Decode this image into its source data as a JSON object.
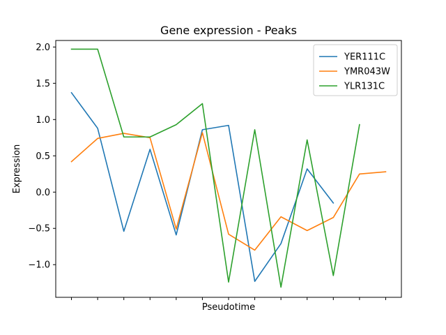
{
  "chart_data": {
    "type": "line",
    "title": "Gene expression - Peaks",
    "xlabel": "Pseudotime",
    "ylabel": "Expression",
    "x": [
      0,
      1,
      2,
      3,
      4,
      5,
      6,
      7,
      8,
      9,
      10,
      11,
      12
    ],
    "xlim": [
      -0.6,
      12.6
    ],
    "ylim": [
      -1.45,
      2.09
    ],
    "yticks": [
      -1.0,
      -0.5,
      0.0,
      0.5,
      1.0,
      1.5,
      2.0
    ],
    "ytick_labels": [
      "−1.0",
      "−0.5",
      "0.0",
      "0.5",
      "1.0",
      "1.5",
      "2.0"
    ],
    "xtick_labels": [
      "",
      "",
      "",
      "",
      "",
      "",
      "",
      "",
      "",
      "",
      "",
      "",
      ""
    ],
    "grid": false,
    "legend_position": "upper-right",
    "series": [
      {
        "name": "YER111C",
        "color": "#1f77b4",
        "values": [
          1.37,
          0.88,
          -0.54,
          0.59,
          -0.59,
          0.86,
          0.92,
          -1.23,
          -0.71,
          0.32,
          -0.15,
          null,
          null
        ]
      },
      {
        "name": "YMR043W",
        "color": "#ff7f0e",
        "values": [
          0.42,
          0.74,
          0.81,
          0.75,
          -0.51,
          0.82,
          -0.58,
          -0.8,
          -0.34,
          -0.53,
          -0.35,
          0.25,
          0.28
        ]
      },
      {
        "name": "YLR131C",
        "color": "#2ca02c",
        "values": [
          1.97,
          1.97,
          0.76,
          0.76,
          0.93,
          1.22,
          -1.24,
          0.86,
          -1.31,
          0.72,
          -1.15,
          0.93,
          null
        ]
      }
    ]
  }
}
